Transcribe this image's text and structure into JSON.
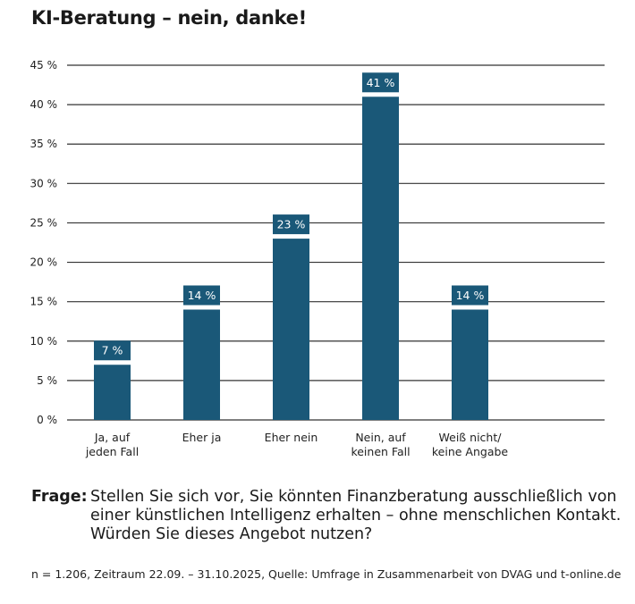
{
  "title": "KI-Beratung – nein, danke!",
  "chart_data": {
    "type": "bar",
    "categories": [
      [
        "Ja, auf",
        "jeden Fall"
      ],
      [
        "Eher ja"
      ],
      [
        "Eher nein"
      ],
      [
        "Nein, auf",
        "keinen Fall"
      ],
      [
        "Weiß nicht/",
        "keine Angabe"
      ]
    ],
    "values": [
      7,
      14,
      23,
      41,
      14
    ],
    "data_labels": [
      "7 %",
      "14 %",
      "23 %",
      "41 %",
      "14 %"
    ],
    "ylim": [
      0,
      45
    ],
    "yticks": [
      0,
      5,
      10,
      15,
      20,
      25,
      30,
      35,
      40,
      45
    ],
    "ytick_labels": [
      "0 %",
      "5 %",
      "10 %",
      "15 %",
      "20 %",
      "25 %",
      "30 %",
      "35 %",
      "40 %",
      "45 %"
    ],
    "grid": true,
    "bar_color": "#1a5878"
  },
  "question": {
    "label": "Frage:",
    "text": "Stellen Sie sich vor, Sie könnten Finanzberatung ausschließlich von einer künstlichen Intelligenz erhalten – ohne menschlichen Kontakt. Würden Sie dieses Angebot nutzen?"
  },
  "source": "n = 1.206, Zeitraum 22.09. – 31.10.2025, Quelle: Umfrage in Zusammenarbeit von DVAG und t-online.de"
}
